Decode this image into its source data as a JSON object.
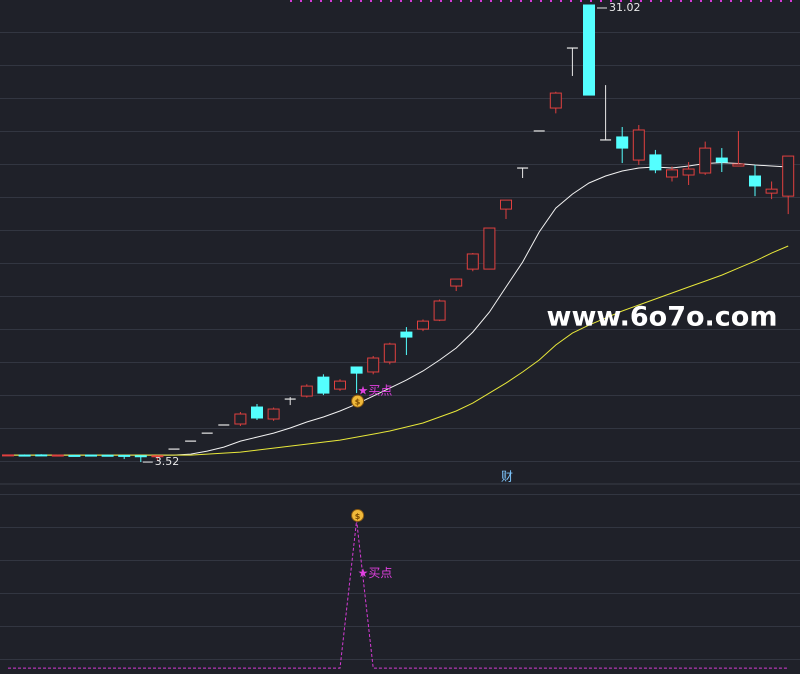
{
  "chart_data": [
    {
      "type": "candlestick",
      "ylim": [
        2.26,
        31.32
      ],
      "up_color": "#e0403f",
      "down_color": "#54ffff",
      "flat_color": "#e8e8e8",
      "open": [
        3.92,
        3.94,
        3.95,
        3.93,
        3.92,
        3.94,
        3.93,
        3.92,
        3.9,
        3.88,
        4.3,
        4.78,
        5.26,
        5.75,
        5.81,
        6.83,
        6.11,
        7.31,
        7.49,
        8.63,
        7.91,
        9.24,
        8.94,
        9.54,
        11.34,
        11.52,
        12.06,
        14.11,
        15.13,
        15.13,
        18.74,
        21.21,
        23.44,
        24.82,
        28.43,
        31.02,
        22.9,
        23.08,
        21.69,
        22.0,
        20.67,
        20.79,
        20.91,
        21.81,
        21.33,
        20.73,
        19.7,
        19.52
      ],
      "high": [
        3.97,
        3.98,
        3.99,
        3.97,
        3.96,
        3.97,
        3.96,
        3.95,
        3.94,
        3.93,
        4.3,
        4.78,
        5.26,
        5.75,
        6.53,
        7.01,
        6.8,
        7.43,
        8.2,
        8.8,
        8.5,
        9.24,
        9.9,
        10.7,
        11.64,
        12.1,
        13.3,
        14.53,
        16.1,
        17.6,
        19.28,
        21.21,
        23.44,
        25.8,
        28.43,
        31.02,
        26.2,
        23.68,
        23.8,
        22.3,
        21.3,
        21.57,
        22.8,
        22.41,
        23.44,
        21.39,
        20.4,
        21.93
      ],
      "low": [
        3.89,
        3.9,
        3.91,
        3.89,
        3.88,
        3.89,
        3.87,
        3.7,
        3.52,
        3.6,
        4.3,
        4.78,
        5.26,
        5.75,
        5.69,
        6.05,
        6.0,
        6.95,
        7.4,
        7.55,
        7.8,
        7.67,
        8.8,
        9.4,
        9.96,
        11.4,
        12.0,
        13.81,
        15.0,
        15.13,
        18.14,
        20.61,
        23.44,
        24.5,
        26.75,
        25.6,
        22.9,
        21.51,
        21.4,
        20.9,
        20.4,
        20.19,
        20.8,
        20.97,
        21.33,
        19.52,
        19.34,
        18.44
      ],
      "close": [
        3.95,
        3.92,
        3.93,
        3.94,
        3.9,
        3.92,
        3.91,
        3.89,
        3.86,
        3.9,
        4.3,
        4.78,
        5.26,
        5.75,
        6.41,
        6.17,
        6.71,
        7.31,
        8.09,
        7.67,
        8.39,
        8.87,
        9.78,
        10.62,
        11.04,
        12.0,
        13.21,
        14.53,
        16.04,
        17.6,
        19.28,
        21.21,
        23.44,
        25.72,
        28.43,
        25.6,
        22.9,
        22.41,
        23.5,
        21.1,
        21.1,
        21.15,
        22.41,
        21.57,
        21.45,
        20.13,
        19.94,
        21.93
      ],
      "moving_averages": [
        {
          "color": "#f2f2f2",
          "values": [
            3.94,
            3.94,
            3.94,
            3.94,
            3.94,
            3.94,
            3.94,
            3.94,
            3.94,
            3.94,
            3.94,
            4.0,
            4.18,
            4.42,
            4.78,
            5.02,
            5.26,
            5.57,
            5.93,
            6.23,
            6.59,
            7.01,
            7.49,
            7.97,
            8.45,
            9.0,
            9.66,
            10.38,
            11.34,
            12.54,
            14.05,
            15.55,
            17.36,
            18.8,
            19.64,
            20.31,
            20.73,
            21.03,
            21.21,
            21.27,
            21.21,
            21.33,
            21.48,
            21.54,
            21.48,
            21.39,
            21.33,
            21.27
          ]
        },
        {
          "color": "#e8e83a",
          "values": [
            3.94,
            3.94,
            3.94,
            3.94,
            3.94,
            3.94,
            3.94,
            3.94,
            3.94,
            3.94,
            3.94,
            3.94,
            4.0,
            4.06,
            4.12,
            4.24,
            4.36,
            4.48,
            4.6,
            4.72,
            4.84,
            5.02,
            5.2,
            5.39,
            5.63,
            5.87,
            6.23,
            6.59,
            7.07,
            7.67,
            8.27,
            8.94,
            9.66,
            10.56,
            11.28,
            11.76,
            12.18,
            12.61,
            12.97,
            13.33,
            13.69,
            14.05,
            14.41,
            14.77,
            15.19,
            15.61,
            16.09,
            16.52
          ]
        }
      ],
      "marker_label": "财",
      "watermark": "www.6o7o.com"
    },
    {
      "type": "line",
      "ylim": [
        -0.04,
        1.24
      ],
      "color": "#d63bd6",
      "values": [
        0,
        0,
        0,
        0,
        0,
        0,
        0,
        0,
        0,
        0,
        0,
        0,
        0,
        0,
        0,
        0,
        0,
        0,
        0,
        0,
        0,
        1,
        0,
        0,
        0,
        0,
        0,
        0,
        0,
        0,
        0,
        0,
        0,
        0,
        0,
        0,
        0,
        0,
        0,
        0,
        0,
        0,
        0,
        0,
        0,
        0,
        0,
        0
      ],
      "signal_label": "★买点"
    }
  ]
}
